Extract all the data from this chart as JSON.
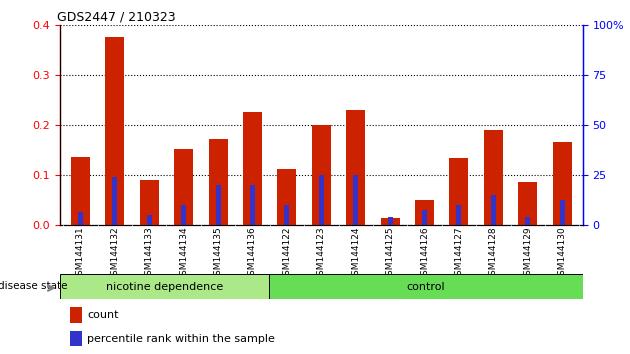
{
  "title": "GDS2447 / 210323",
  "categories": [
    "GSM144131",
    "GSM144132",
    "GSM144133",
    "GSM144134",
    "GSM144135",
    "GSM144136",
    "GSM144122",
    "GSM144123",
    "GSM144124",
    "GSM144125",
    "GSM144126",
    "GSM144127",
    "GSM144128",
    "GSM144129",
    "GSM144130"
  ],
  "count_values": [
    0.135,
    0.375,
    0.09,
    0.152,
    0.172,
    0.225,
    0.112,
    0.2,
    0.23,
    0.013,
    0.05,
    0.133,
    0.19,
    0.085,
    0.165
  ],
  "percentile_values": [
    0.025,
    0.095,
    0.02,
    0.04,
    0.08,
    0.08,
    0.04,
    0.1,
    0.1,
    0.015,
    0.03,
    0.04,
    0.06,
    0.015,
    0.05
  ],
  "nicotine_count": 6,
  "control_count": 9,
  "group_label_nicotine": "nicotine dependence",
  "group_label_control": "control",
  "disease_state_label": "disease state",
  "count_color": "#cc2200",
  "percentile_color": "#3333cc",
  "nicotine_bg": "#aae888",
  "control_bg": "#66dd55",
  "tick_bg": "#c8c8c8",
  "ylim_left": [
    0,
    0.4
  ],
  "ylim_right": [
    0,
    100
  ],
  "yticks_left": [
    0,
    0.1,
    0.2,
    0.3,
    0.4
  ],
  "yticks_right": [
    0,
    25,
    50,
    75,
    100
  ],
  "bar_width": 0.55,
  "blue_bar_width": 0.15,
  "legend_count": "count",
  "legend_percentile": "percentile rank within the sample"
}
